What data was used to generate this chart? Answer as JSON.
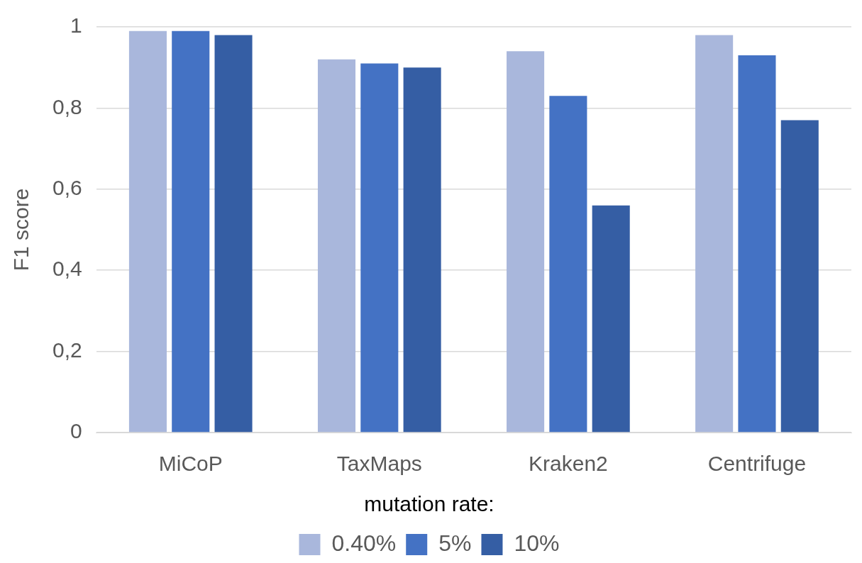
{
  "chart_data": {
    "type": "bar",
    "ylabel": "F1 score",
    "legend_title": "mutation rate:",
    "categories": [
      "MiCoP",
      "TaxMaps",
      "Kraken2",
      "Centrifuge"
    ],
    "series": [
      {
        "name": "0.40%",
        "color": "#a9b7dc",
        "values": [
          0.99,
          0.92,
          0.94,
          0.98
        ]
      },
      {
        "name": "5%",
        "color": "#4472c4",
        "values": [
          0.99,
          0.91,
          0.83,
          0.93
        ]
      },
      {
        "name": "10%",
        "color": "#355ea4",
        "values": [
          0.98,
          0.9,
          0.56,
          0.77
        ]
      }
    ],
    "ylim": [
      0,
      1
    ],
    "yticks": [
      0,
      {
        "value": 0.2,
        "label": "0,2"
      },
      {
        "value": 0.4,
        "label": "0,4"
      },
      {
        "value": 0.6,
        "label": "0,6"
      },
      {
        "value": 0.8,
        "label": "0,8"
      },
      1
    ],
    "grid": "y",
    "legend": "bottom"
  }
}
